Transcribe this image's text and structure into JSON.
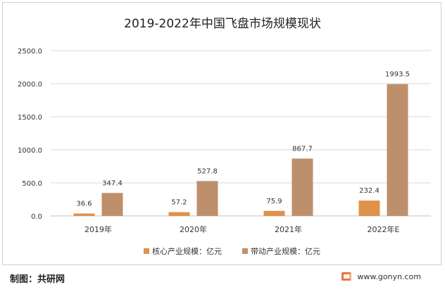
{
  "chart_data": {
    "type": "bar",
    "title": "2019-2022年中国飞盘市场规模现状",
    "categories": [
      "2019年",
      "2020年",
      "2021年",
      "2022年E"
    ],
    "series": [
      {
        "name": "核心产业规模：亿元",
        "values": [
          36.6,
          57.2,
          75.9,
          232.4
        ],
        "labels": [
          "36.6",
          "57.2",
          "75.9",
          "232.4"
        ],
        "color": "#e0914a"
      },
      {
        "name": "带动产业规模：亿元",
        "values": [
          347.4,
          527.8,
          867.7,
          1993.5
        ],
        "labels": [
          "347.4",
          "527.8",
          "867.7",
          "1993.5"
        ],
        "color": "#be8f6b"
      }
    ],
    "ylim": [
      0,
      2500
    ],
    "yticks": [
      "0.0",
      "500.0",
      "1000.0",
      "1500.0",
      "2000.0",
      "2500.0"
    ],
    "grid": true,
    "legend": "bottom"
  },
  "footer": {
    "credit": "制图：共研网",
    "website": "www.gonyn.com",
    "logo_icon": "gonyn-logo-icon"
  }
}
